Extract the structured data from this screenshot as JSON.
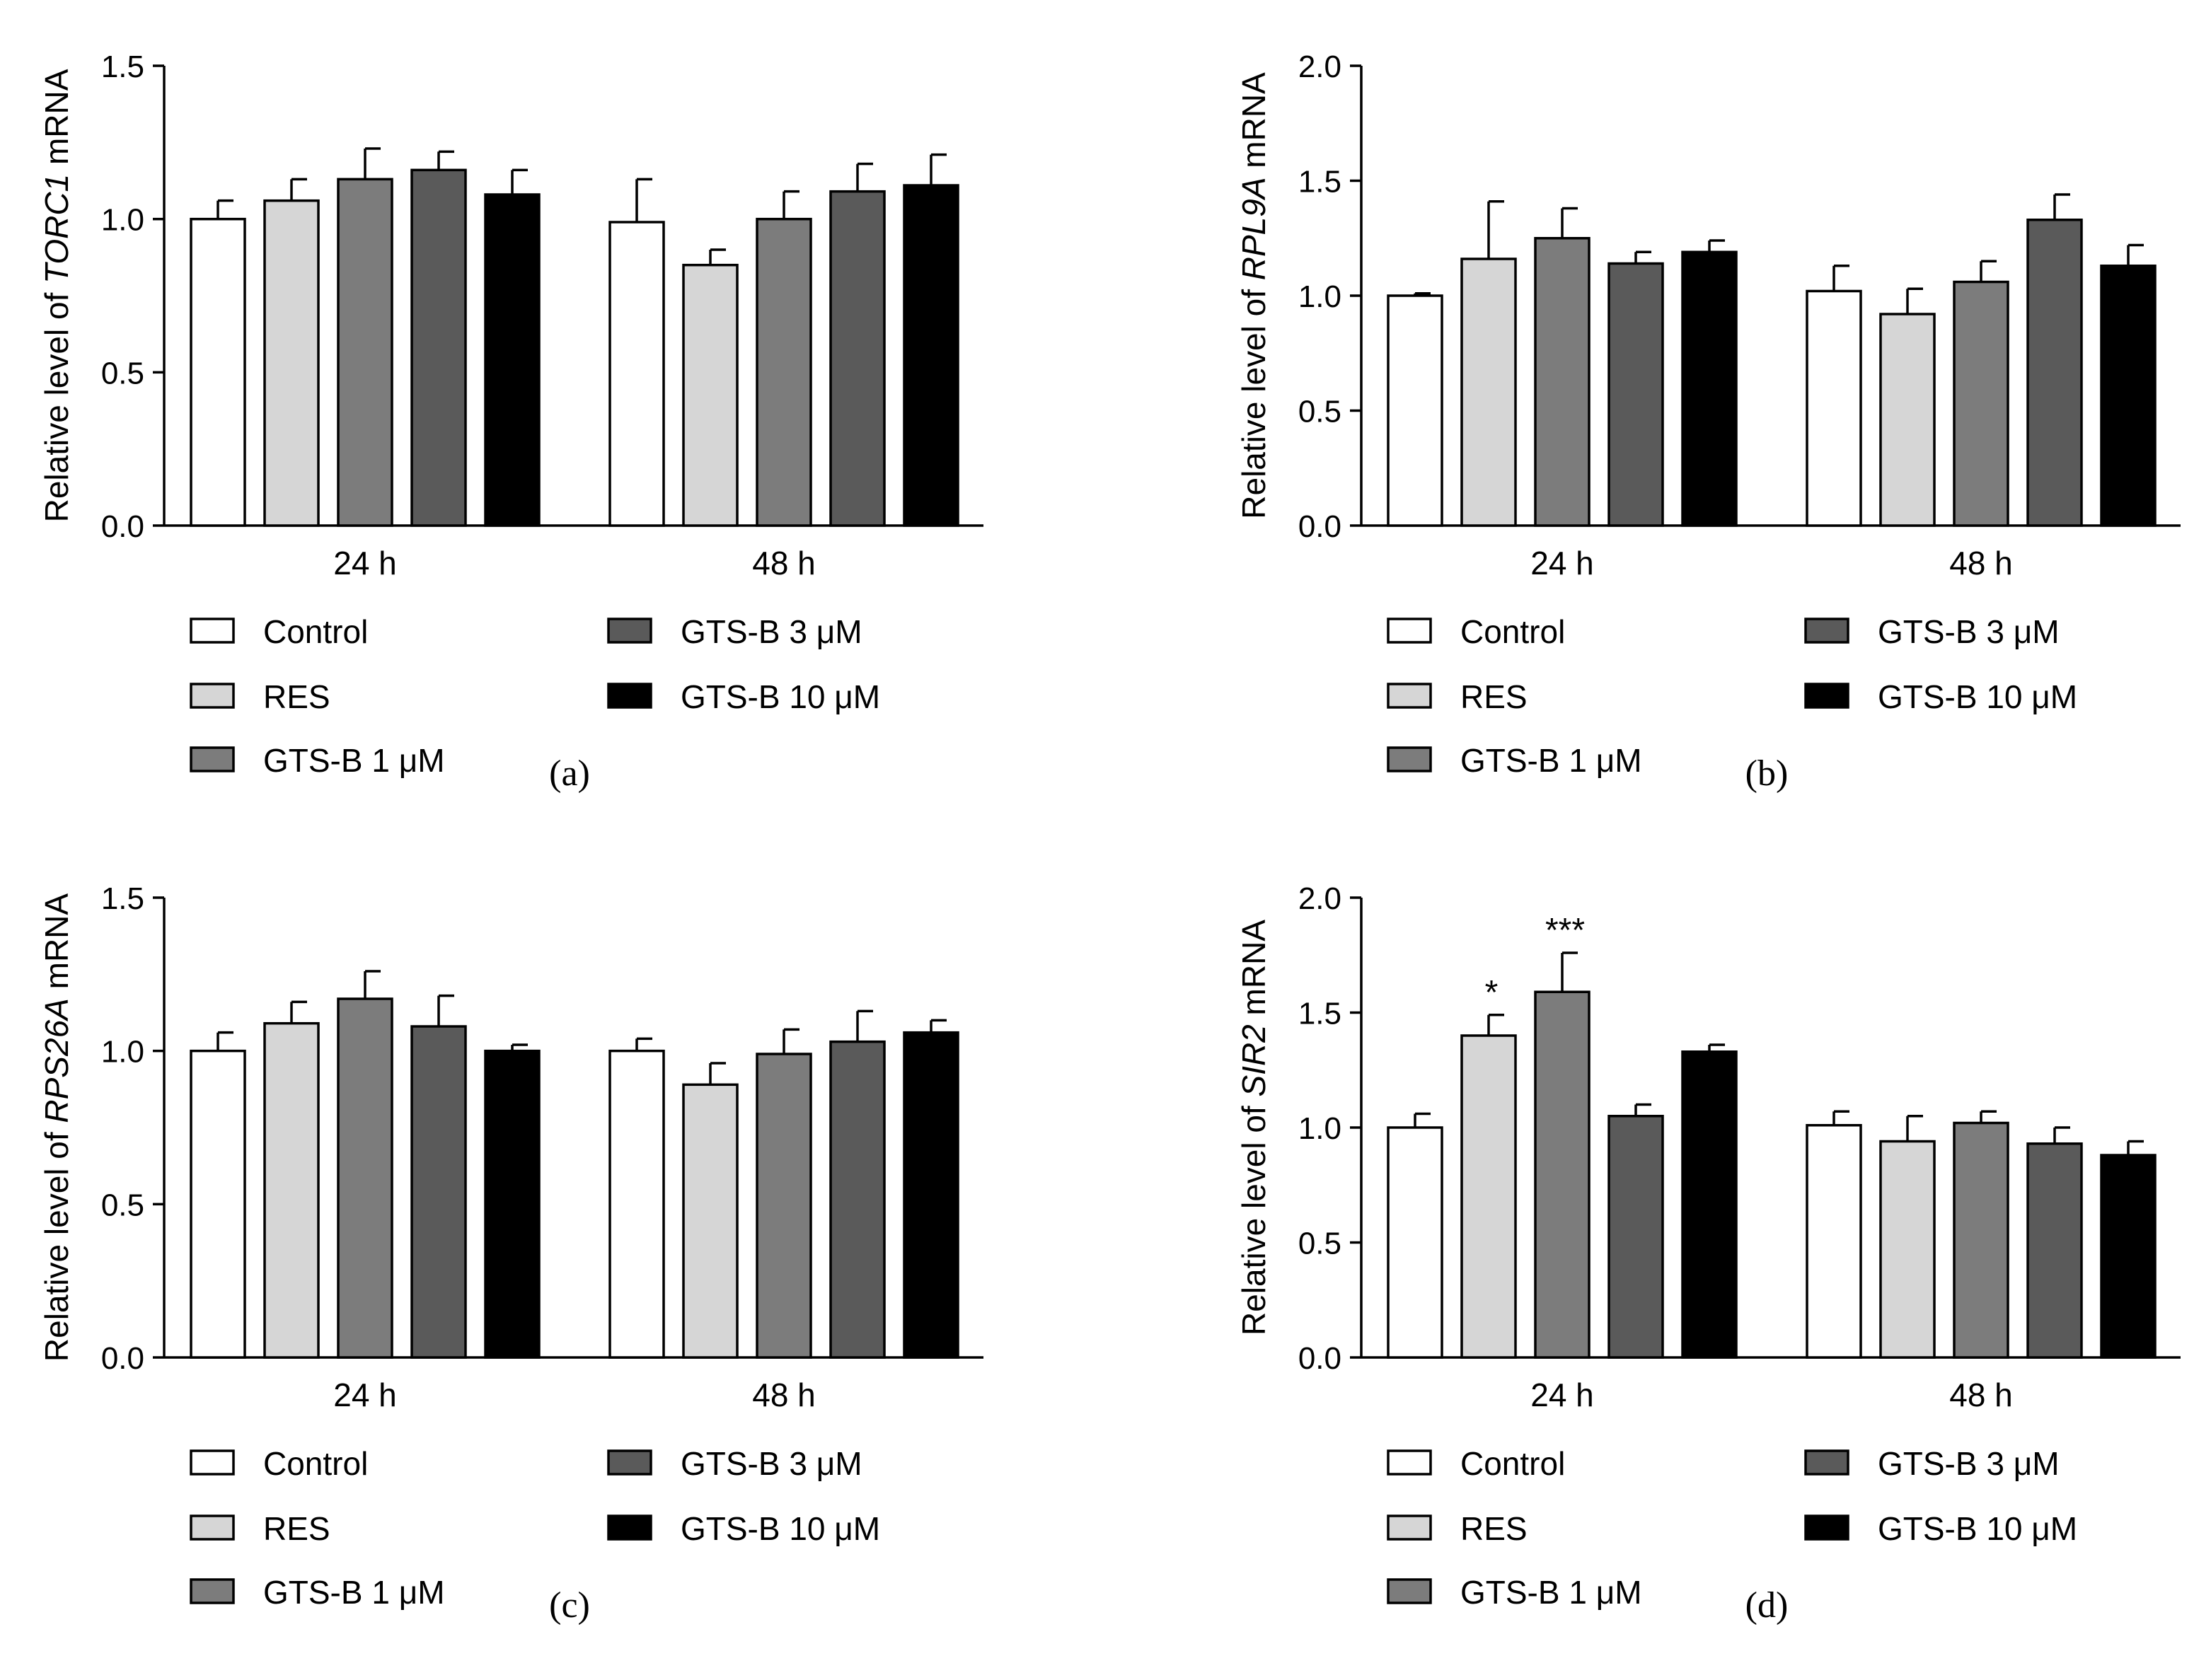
{
  "figure": {
    "colors": {
      "Control": "#ffffff",
      "RES": "#d6d6d6",
      "GTS-B 1 μM": "#7c7c7c",
      "GTS-B 3 μM": "#5a5a5a",
      "GTS-B 10 μM": "#000000"
    }
  },
  "chart_data": [
    {
      "type": "bar",
      "panel_label": "(a)",
      "ylabel_prefix": "Relative level of ",
      "ylabel_gene": "TORC1",
      "ylabel_suffix": " mRNA",
      "ylim": [
        0,
        1.5
      ],
      "yticks": [
        "0.0",
        "0.5",
        "1.0",
        "1.5"
      ],
      "ytick_values": [
        0,
        0.5,
        1.0,
        1.5
      ],
      "categories": [
        "24 h",
        "48 h"
      ],
      "legend": [
        "Control",
        "RES",
        "GTS-B 1 μM",
        "GTS-B 3 μM",
        "GTS-B 10 μM"
      ],
      "series": [
        {
          "name": "Control",
          "values": [
            1.0,
            0.99
          ],
          "errors": [
            0.06,
            0.14
          ]
        },
        {
          "name": "RES",
          "values": [
            1.06,
            0.85
          ],
          "errors": [
            0.07,
            0.05
          ]
        },
        {
          "name": "GTS-B 1 μM",
          "values": [
            1.13,
            1.0
          ],
          "errors": [
            0.1,
            0.09
          ]
        },
        {
          "name": "GTS-B 3 μM",
          "values": [
            1.16,
            1.09
          ],
          "errors": [
            0.06,
            0.09
          ]
        },
        {
          "name": "GTS-B 10 μM",
          "values": [
            1.08,
            1.11
          ],
          "errors": [
            0.08,
            0.1
          ]
        }
      ],
      "annotations": []
    },
    {
      "type": "bar",
      "panel_label": "(b)",
      "ylabel_prefix": "Relative level of ",
      "ylabel_gene": "RPL9A",
      "ylabel_suffix": " mRNA",
      "ylim": [
        0,
        2.0
      ],
      "yticks": [
        "0.0",
        "0.5",
        "1.0",
        "1.5",
        "2.0"
      ],
      "ytick_values": [
        0,
        0.5,
        1.0,
        1.5,
        2.0
      ],
      "categories": [
        "24 h",
        "48 h"
      ],
      "legend": [
        "Control",
        "RES",
        "GTS-B 1 μM",
        "GTS-B 3 μM",
        "GTS-B 10 μM"
      ],
      "series": [
        {
          "name": "Control",
          "values": [
            1.0,
            1.02
          ],
          "errors": [
            0.01,
            0.11
          ]
        },
        {
          "name": "RES",
          "values": [
            1.16,
            0.92
          ],
          "errors": [
            0.25,
            0.11
          ]
        },
        {
          "name": "GTS-B 1 μM",
          "values": [
            1.25,
            1.06
          ],
          "errors": [
            0.13,
            0.09
          ]
        },
        {
          "name": "GTS-B 3 μM",
          "values": [
            1.14,
            1.33
          ],
          "errors": [
            0.05,
            0.11
          ]
        },
        {
          "name": "GTS-B 10 μM",
          "values": [
            1.19,
            1.13
          ],
          "errors": [
            0.05,
            0.09
          ]
        }
      ],
      "annotations": []
    },
    {
      "type": "bar",
      "panel_label": "(c)",
      "ylabel_prefix": "Relative level of ",
      "ylabel_gene": "RPS26A",
      "ylabel_suffix": " mRNA",
      "ylim": [
        0,
        1.5
      ],
      "yticks": [
        "0.0",
        "0.5",
        "1.0",
        "1.5"
      ],
      "ytick_values": [
        0,
        0.5,
        1.0,
        1.5
      ],
      "categories": [
        "24 h",
        "48 h"
      ],
      "legend": [
        "Control",
        "RES",
        "GTS-B 1 μM",
        "GTS-B 3 μM",
        "GTS-B 10 μM"
      ],
      "series": [
        {
          "name": "Control",
          "values": [
            1.0,
            1.0
          ],
          "errors": [
            0.06,
            0.04
          ]
        },
        {
          "name": "RES",
          "values": [
            1.09,
            0.89
          ],
          "errors": [
            0.07,
            0.07
          ]
        },
        {
          "name": "GTS-B 1 μM",
          "values": [
            1.17,
            0.99
          ],
          "errors": [
            0.09,
            0.08
          ]
        },
        {
          "name": "GTS-B 3 μM",
          "values": [
            1.08,
            1.03
          ],
          "errors": [
            0.1,
            0.1
          ]
        },
        {
          "name": "GTS-B 10 μM",
          "values": [
            1.0,
            1.06
          ],
          "errors": [
            0.02,
            0.04
          ]
        }
      ],
      "annotations": []
    },
    {
      "type": "bar",
      "panel_label": "(d)",
      "ylabel_prefix": "Relative level of ",
      "ylabel_gene": "SIR2",
      "ylabel_suffix": " mRNA",
      "ylim": [
        0,
        2.0
      ],
      "yticks": [
        "0.0",
        "0.5",
        "1.0",
        "1.5",
        "2.0"
      ],
      "ytick_values": [
        0,
        0.5,
        1.0,
        1.5,
        2.0
      ],
      "categories": [
        "24 h",
        "48 h"
      ],
      "legend": [
        "Control",
        "RES",
        "GTS-B 1 μM",
        "GTS-B 3 μM",
        "GTS-B 10 μM"
      ],
      "series": [
        {
          "name": "Control",
          "values": [
            1.0,
            1.01
          ],
          "errors": [
            0.06,
            0.06
          ]
        },
        {
          "name": "RES",
          "values": [
            1.4,
            0.94
          ],
          "errors": [
            0.09,
            0.11
          ]
        },
        {
          "name": "GTS-B 1 μM",
          "values": [
            1.59,
            1.02
          ],
          "errors": [
            0.17,
            0.05
          ]
        },
        {
          "name": "GTS-B 3 μM",
          "values": [
            1.05,
            0.93
          ],
          "errors": [
            0.05,
            0.07
          ]
        },
        {
          "name": "GTS-B 10 μM",
          "values": [
            1.33,
            0.88
          ],
          "errors": [
            0.03,
            0.06
          ]
        }
      ],
      "annotations": [
        {
          "series": 1,
          "category": 0,
          "text": "*"
        },
        {
          "series": 2,
          "category": 0,
          "text": "***"
        }
      ]
    }
  ]
}
